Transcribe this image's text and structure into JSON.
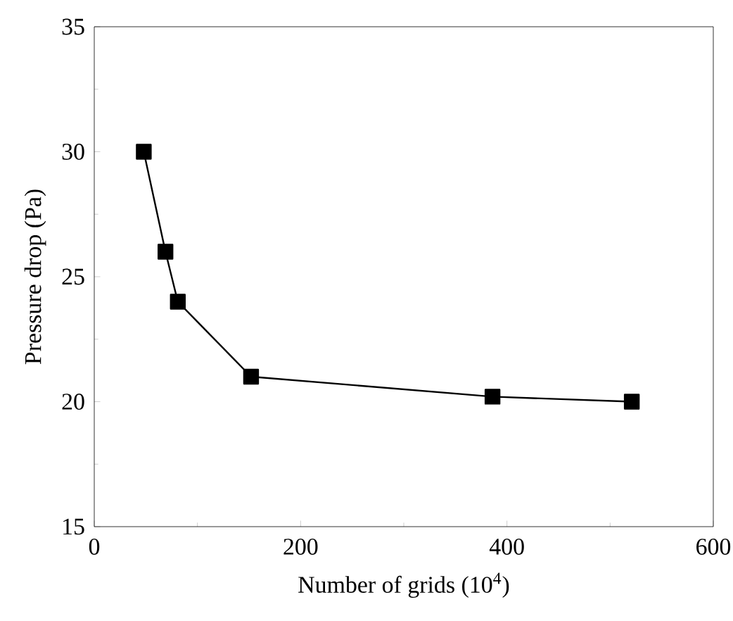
{
  "chart_data": {
    "type": "line",
    "xlabel": "Number of grids (10$^{4}$)",
    "ylabel": "Pressure drop (Pa)",
    "x": [
      48,
      69,
      81,
      152,
      386,
      521
    ],
    "series": [
      {
        "color": "#000000",
        "values": [
          30,
          26,
          24,
          21,
          20.2,
          20
        ]
      }
    ],
    "xlim": [
      0,
      600
    ],
    "xticks": [
      0,
      200,
      400,
      600
    ],
    "ylim": [
      15,
      35
    ],
    "yticks": [
      15,
      20,
      25,
      30,
      35
    ],
    "marker": "square",
    "line_style": "solid",
    "grid": false
  }
}
